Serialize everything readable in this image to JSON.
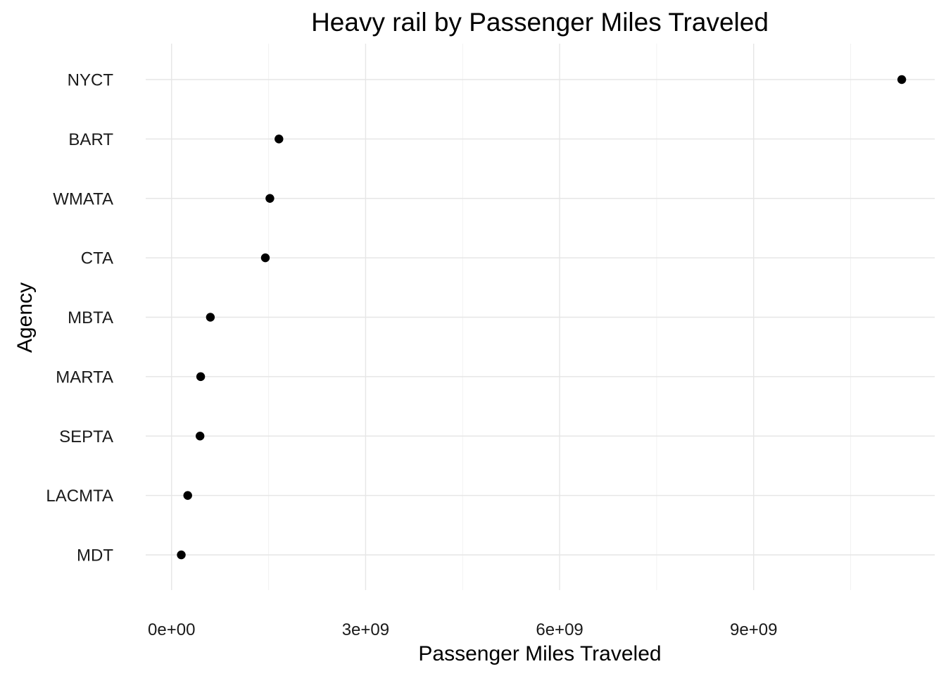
{
  "chart_data": {
    "type": "scatter",
    "title": "Heavy rail by Passenger Miles Traveled",
    "xlabel": "Passenger Miles Traveled",
    "ylabel": "Agency",
    "categories": [
      "MDT",
      "LACMTA",
      "SEPTA",
      "MARTA",
      "MBTA",
      "CTA",
      "WMATA",
      "BART",
      "NYCT"
    ],
    "values": [
      150000000,
      250000000,
      440000000,
      450000000,
      600000000,
      1450000000,
      1520000000,
      1660000000,
      11290000000
    ],
    "xlim": [
      -400000000,
      11800000000
    ],
    "x_ticks": [
      0,
      3000000000,
      6000000000,
      9000000000
    ],
    "x_tick_labels": [
      "0e+00",
      "3e+09",
      "6e+09",
      "9e+09"
    ],
    "x_minor_ticks": [
      1500000000,
      4500000000,
      7500000000,
      10500000000
    ],
    "grid": true,
    "legend": "none",
    "point_color": "#000000"
  }
}
